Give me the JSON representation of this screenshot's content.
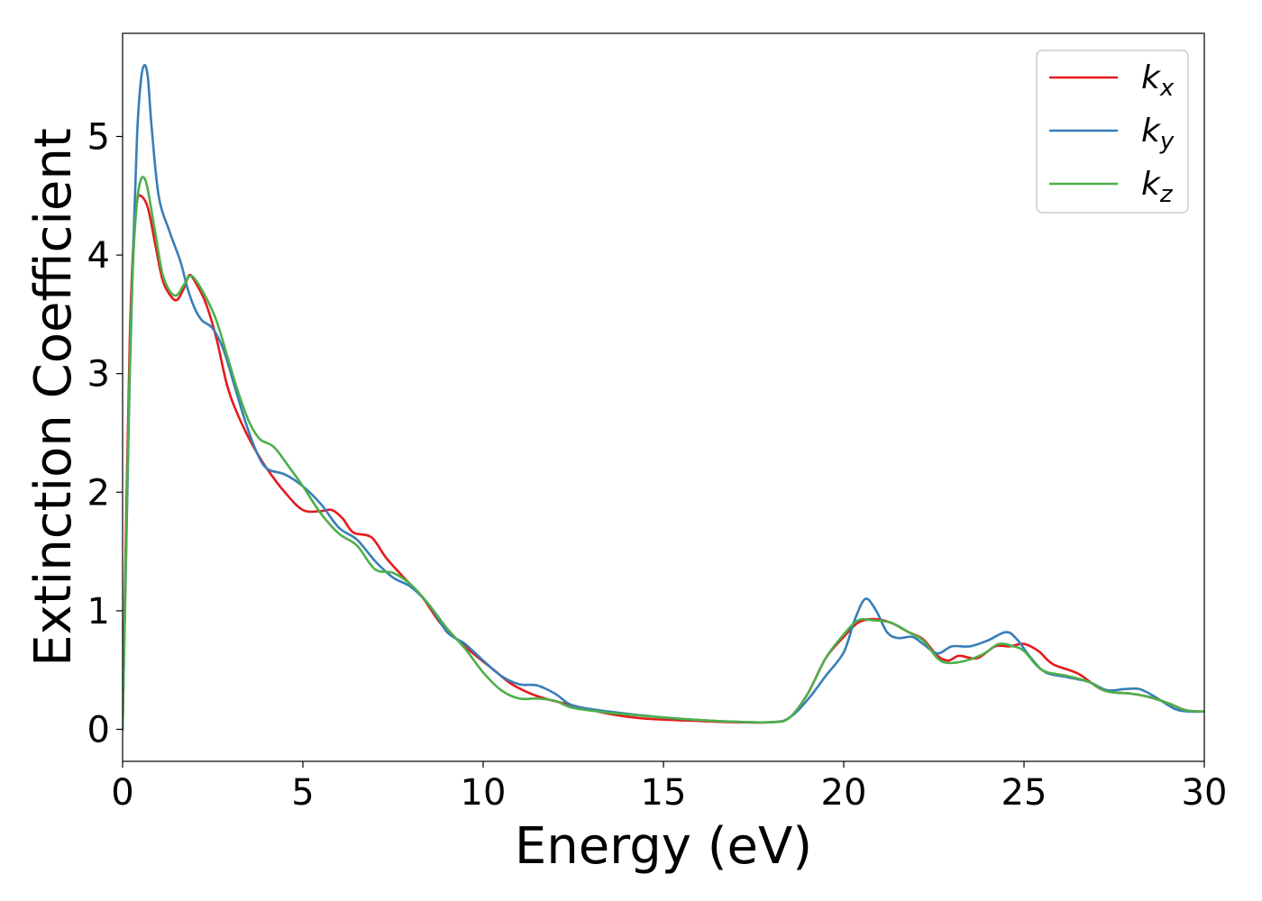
{
  "chart_data": {
    "type": "line",
    "xlabel": "Energy (eV)",
    "ylabel": "Extinction Coefficient",
    "xlim": [
      0,
      30
    ],
    "ylim": [
      -0.27,
      5.87
    ],
    "xticks": [
      0,
      5,
      10,
      15,
      20,
      25,
      30
    ],
    "yticks": [
      0,
      1,
      2,
      3,
      4,
      5
    ],
    "grid": false,
    "legend": {
      "position": "top-right",
      "entries": [
        {
          "base": "k",
          "sub": "x"
        },
        {
          "base": "k",
          "sub": "y"
        },
        {
          "base": "k",
          "sub": "z"
        }
      ]
    },
    "series": [
      {
        "name": "k_x",
        "color": "#e41a1c",
        "points": [
          [
            0,
            0
          ],
          [
            0.1,
            1.8
          ],
          [
            0.2,
            3.3
          ],
          [
            0.3,
            4.1
          ],
          [
            0.4,
            4.45
          ],
          [
            0.5,
            4.5
          ],
          [
            0.7,
            4.4
          ],
          [
            0.9,
            4.1
          ],
          [
            1.1,
            3.8
          ],
          [
            1.3,
            3.67
          ],
          [
            1.5,
            3.62
          ],
          [
            1.7,
            3.72
          ],
          [
            1.85,
            3.83
          ],
          [
            2.0,
            3.78
          ],
          [
            2.3,
            3.6
          ],
          [
            2.6,
            3.3
          ],
          [
            2.9,
            2.9
          ],
          [
            3.2,
            2.65
          ],
          [
            3.6,
            2.4
          ],
          [
            4.0,
            2.2
          ],
          [
            4.5,
            2.0
          ],
          [
            5.0,
            1.85
          ],
          [
            5.5,
            1.84
          ],
          [
            5.8,
            1.85
          ],
          [
            6.1,
            1.78
          ],
          [
            6.4,
            1.66
          ],
          [
            6.9,
            1.62
          ],
          [
            7.3,
            1.45
          ],
          [
            7.8,
            1.28
          ],
          [
            8.3,
            1.12
          ],
          [
            8.8,
            0.9
          ],
          [
            9.3,
            0.75
          ],
          [
            9.8,
            0.62
          ],
          [
            10.3,
            0.5
          ],
          [
            10.8,
            0.38
          ],
          [
            11.5,
            0.28
          ],
          [
            12.5,
            0.2
          ],
          [
            13.5,
            0.13
          ],
          [
            14.5,
            0.09
          ],
          [
            16,
            0.07
          ],
          [
            17,
            0.06
          ],
          [
            18,
            0.06
          ],
          [
            18.5,
            0.1
          ],
          [
            19,
            0.3
          ],
          [
            19.5,
            0.6
          ],
          [
            20.0,
            0.78
          ],
          [
            20.4,
            0.9
          ],
          [
            20.8,
            0.93
          ],
          [
            21.3,
            0.9
          ],
          [
            21.8,
            0.82
          ],
          [
            22.2,
            0.76
          ],
          [
            22.6,
            0.62
          ],
          [
            22.9,
            0.58
          ],
          [
            23.2,
            0.62
          ],
          [
            23.7,
            0.6
          ],
          [
            24.2,
            0.7
          ],
          [
            24.6,
            0.7
          ],
          [
            25.0,
            0.72
          ],
          [
            25.4,
            0.66
          ],
          [
            25.8,
            0.55
          ],
          [
            26.5,
            0.47
          ],
          [
            27.2,
            0.33
          ],
          [
            28,
            0.3
          ],
          [
            28.5,
            0.27
          ],
          [
            29,
            0.22
          ],
          [
            29.5,
            0.16
          ],
          [
            30,
            0.15
          ]
        ]
      },
      {
        "name": "k_y",
        "color": "#377eb8",
        "points": [
          [
            0,
            0
          ],
          [
            0.1,
            1.5
          ],
          [
            0.2,
            3.0
          ],
          [
            0.3,
            4.1
          ],
          [
            0.4,
            5.0
          ],
          [
            0.5,
            5.45
          ],
          [
            0.6,
            5.6
          ],
          [
            0.7,
            5.5
          ],
          [
            0.8,
            5.1
          ],
          [
            1.0,
            4.5
          ],
          [
            1.3,
            4.2
          ],
          [
            1.6,
            3.95
          ],
          [
            1.8,
            3.72
          ],
          [
            2.0,
            3.55
          ],
          [
            2.2,
            3.45
          ],
          [
            2.5,
            3.38
          ],
          [
            2.8,
            3.2
          ],
          [
            3.1,
            2.9
          ],
          [
            3.4,
            2.6
          ],
          [
            3.7,
            2.35
          ],
          [
            4.0,
            2.2
          ],
          [
            4.5,
            2.15
          ],
          [
            5.0,
            2.05
          ],
          [
            5.5,
            1.9
          ],
          [
            6.0,
            1.7
          ],
          [
            6.5,
            1.6
          ],
          [
            7.0,
            1.42
          ],
          [
            7.5,
            1.28
          ],
          [
            8.0,
            1.2
          ],
          [
            8.5,
            1.05
          ],
          [
            9.0,
            0.82
          ],
          [
            9.5,
            0.72
          ],
          [
            10.0,
            0.58
          ],
          [
            10.5,
            0.45
          ],
          [
            11.0,
            0.38
          ],
          [
            11.5,
            0.37
          ],
          [
            12,
            0.3
          ],
          [
            12.5,
            0.2
          ],
          [
            13.5,
            0.15
          ],
          [
            15,
            0.1
          ],
          [
            16.5,
            0.07
          ],
          [
            18,
            0.06
          ],
          [
            18.5,
            0.1
          ],
          [
            19,
            0.25
          ],
          [
            19.5,
            0.45
          ],
          [
            20.0,
            0.65
          ],
          [
            20.3,
            0.92
          ],
          [
            20.6,
            1.1
          ],
          [
            20.9,
            1.0
          ],
          [
            21.2,
            0.82
          ],
          [
            21.5,
            0.77
          ],
          [
            21.9,
            0.78
          ],
          [
            22.2,
            0.72
          ],
          [
            22.6,
            0.64
          ],
          [
            23.0,
            0.7
          ],
          [
            23.5,
            0.7
          ],
          [
            24.0,
            0.75
          ],
          [
            24.5,
            0.82
          ],
          [
            24.8,
            0.76
          ],
          [
            25.2,
            0.6
          ],
          [
            25.6,
            0.48
          ],
          [
            26.2,
            0.44
          ],
          [
            26.8,
            0.4
          ],
          [
            27.3,
            0.33
          ],
          [
            27.8,
            0.34
          ],
          [
            28.2,
            0.34
          ],
          [
            28.6,
            0.28
          ],
          [
            29.2,
            0.17
          ],
          [
            29.6,
            0.15
          ],
          [
            30,
            0.15
          ]
        ]
      },
      {
        "name": "k_z",
        "color": "#4daf4a",
        "points": [
          [
            0,
            0
          ],
          [
            0.1,
            1.6
          ],
          [
            0.2,
            3.1
          ],
          [
            0.3,
            4.0
          ],
          [
            0.4,
            4.45
          ],
          [
            0.5,
            4.63
          ],
          [
            0.6,
            4.65
          ],
          [
            0.7,
            4.55
          ],
          [
            0.9,
            4.2
          ],
          [
            1.1,
            3.85
          ],
          [
            1.3,
            3.7
          ],
          [
            1.5,
            3.66
          ],
          [
            1.7,
            3.75
          ],
          [
            1.85,
            3.82
          ],
          [
            2.0,
            3.8
          ],
          [
            2.3,
            3.65
          ],
          [
            2.6,
            3.45
          ],
          [
            2.9,
            3.15
          ],
          [
            3.2,
            2.85
          ],
          [
            3.5,
            2.6
          ],
          [
            3.8,
            2.45
          ],
          [
            4.2,
            2.38
          ],
          [
            4.6,
            2.22
          ],
          [
            5.0,
            2.05
          ],
          [
            5.5,
            1.82
          ],
          [
            6.0,
            1.65
          ],
          [
            6.5,
            1.55
          ],
          [
            7.0,
            1.35
          ],
          [
            7.5,
            1.32
          ],
          [
            8.0,
            1.22
          ],
          [
            8.5,
            1.05
          ],
          [
            9.0,
            0.85
          ],
          [
            9.5,
            0.68
          ],
          [
            10.0,
            0.48
          ],
          [
            10.5,
            0.33
          ],
          [
            11.0,
            0.26
          ],
          [
            11.5,
            0.26
          ],
          [
            12,
            0.24
          ],
          [
            12.5,
            0.18
          ],
          [
            13.5,
            0.14
          ],
          [
            15,
            0.1
          ],
          [
            16.5,
            0.07
          ],
          [
            18,
            0.06
          ],
          [
            18.5,
            0.1
          ],
          [
            19,
            0.3
          ],
          [
            19.5,
            0.6
          ],
          [
            20.0,
            0.8
          ],
          [
            20.4,
            0.92
          ],
          [
            20.8,
            0.92
          ],
          [
            21.3,
            0.9
          ],
          [
            21.8,
            0.82
          ],
          [
            22.2,
            0.75
          ],
          [
            22.6,
            0.6
          ],
          [
            22.9,
            0.56
          ],
          [
            23.4,
            0.58
          ],
          [
            23.9,
            0.64
          ],
          [
            24.3,
            0.72
          ],
          [
            24.7,
            0.7
          ],
          [
            25.0,
            0.66
          ],
          [
            25.5,
            0.5
          ],
          [
            26.2,
            0.45
          ],
          [
            26.8,
            0.4
          ],
          [
            27.3,
            0.32
          ],
          [
            28,
            0.3
          ],
          [
            28.5,
            0.27
          ],
          [
            29,
            0.22
          ],
          [
            29.5,
            0.16
          ],
          [
            30,
            0.15
          ]
        ]
      }
    ]
  }
}
